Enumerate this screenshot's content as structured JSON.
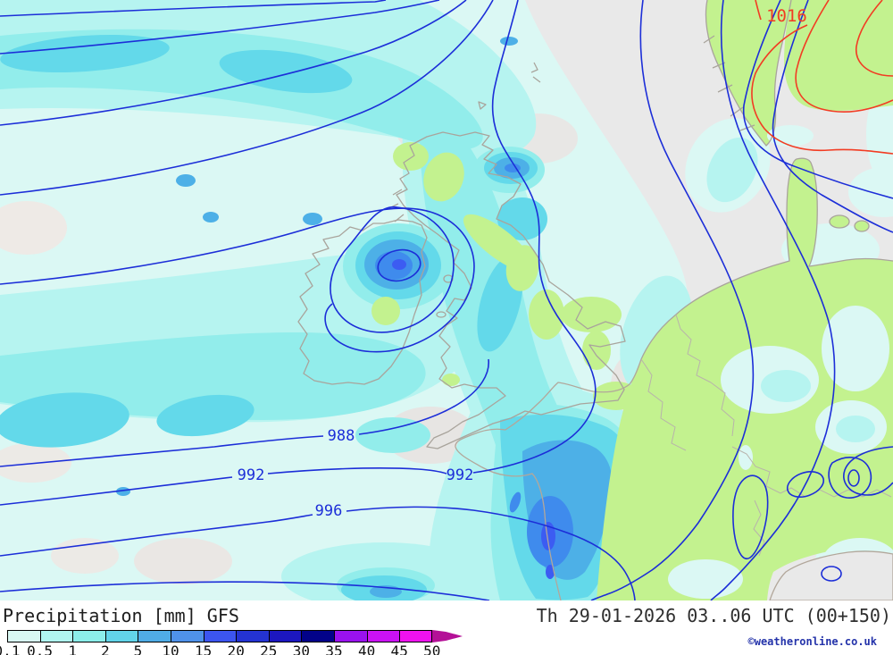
{
  "map": {
    "isobar_labels": [
      "988",
      "992",
      "996",
      "992"
    ],
    "high_pressure_label": "1016",
    "colors": {
      "sea": "#e9e9e9",
      "land": "#c3f28f",
      "isobar_blue": "#1c2ed8",
      "contour_red": "#f23c23",
      "precip_levels": [
        "#dbf8f4",
        "#b6f4f0",
        "#92edeb",
        "#63d9ea",
        "#4db0e7",
        "#3f8bed",
        "#3c5cf2"
      ]
    }
  },
  "legend": {
    "title": "Precipitation [mm] GFS",
    "scale_values": [
      "0.1",
      "0.5",
      "1",
      "2",
      "5",
      "10",
      "15",
      "20",
      "25",
      "30",
      "35",
      "40",
      "45",
      "50"
    ],
    "scale_colors": [
      "#d8f8f2",
      "#b0f6f0",
      "#8ceeea",
      "#62d4e9",
      "#50ace6",
      "#4f92ea",
      "#3c55f0",
      "#2433d2",
      "#1c17c0",
      "#020289",
      "#9a12ee",
      "#cb12f5",
      "#ef12ef"
    ],
    "arrow_color": "#b41097"
  },
  "footer": {
    "datetime": "Th 29-01-2026 03..06 UTC (00+150)",
    "copyright": "©weatheronline.co.uk"
  }
}
